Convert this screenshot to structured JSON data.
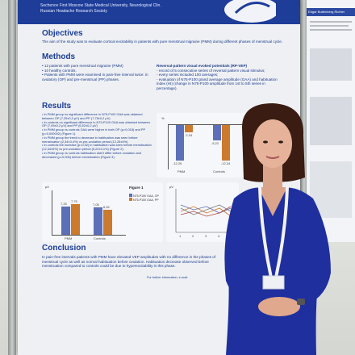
{
  "poster": {
    "header_lines": [
      "Sechenov First Moscow State Medical University, Neurological Clin.",
      "Russian Headache Research Society"
    ],
    "objectives_title": "Objectives",
    "objectives_text": "The aim of the study was to evaluate cortical excitability in patients with pure menstrual migraine (PMM) during different phases of menstrual cycle.",
    "methods_title": "Methods",
    "methods_items": [
      "• 12 patients with pure menstrual migraine (PMM)",
      "• 10 healthy controls.",
      "• Patients with PMM were examined in pain-free interval twice: in ovulatory (OP) and pre-menstrual (PP) phases."
    ],
    "rpvep_title": "Reversal-pattern visual evoked potentials (RP-VEP)",
    "rpvep_items": [
      "- record of 5 consecutive series of reversal pattern visual stimulus;",
      "- every series included 100 averages;",
      "- evaluation of N75-P100 grand average amplitude (GAA) and habituation index (HI) (change in N75-P100 amplitude from 1st to 5th series in percentage)."
    ],
    "results_title": "Results",
    "results_items": [
      "• In PMM group no significant difference in N75-P100 GAA was obtained between OP (7,25±0,3 µV) and PP (7,75±0,2 µV)",
      "• In controls no significant difference in N75-P100 GAA was obtained between OP (7,05±0,2 µV) and PP (6,52±0,2 µV)",
      "• In PMM group vs controls GAA were higher in both OP (p=0,018) and PP (p=0,000002) (Figure 1).",
      "• In PMM group the trend to decrease in habituation was seen before menstruation (2,34±3,4%) vs pre-ovulation period (12,26±4%).",
      "• In controls the increase (p=0,02) in habituation was seen before menstruation (12,34±5%) vs pre-ovulation period (5,22±3,1%) (Figure 2).",
      "• In PMM group vs controls habituation didn't differ before ovulation and decreased (p=0,006) before menstruation (Figure 3)."
    ],
    "conclusion_title": "Conclusion",
    "conclusion_text": "In pain-free intervals patients with PMM have elevated VEP amplitudes with no difference in the phases of menstrual cycle as well as normal habituation before ovulation. Habituation decrease observed before menstruation compared to controls could be due to hyperexcitability in this phase.",
    "footer": "For further information, e-mail:",
    "figure1_title": "Figure 1",
    "figure1_ylabel": "µV",
    "figure1_groups": [
      "PMM",
      "Controls"
    ],
    "figure1_legend": [
      "N75-P100 GAA, OP",
      "N75-P100 GAA, PP"
    ],
    "figure1_values": [
      "7,25",
      "7,75",
      "7,05",
      "6,52"
    ],
    "figure2_ylabel": "%",
    "figure2_groups": [
      "PMM",
      "Controls"
    ],
    "figure2_values": [
      "-12,26",
      "-2,34",
      "-5,22",
      "-12,34"
    ],
    "figure3_ylabel": "µV",
    "figure3_ticks": [
      "1",
      "2",
      "3",
      "4",
      "5"
    ]
  },
  "right_poster": {
    "header": "Edgar Buttenberg Richter"
  },
  "colors": {
    "poster_header": "#1d3d99",
    "poster_text": "#1b3a88",
    "bar_blue": "#5b70b8",
    "bar_orange": "#cc7a2e",
    "dress": "#1f2f9e"
  }
}
